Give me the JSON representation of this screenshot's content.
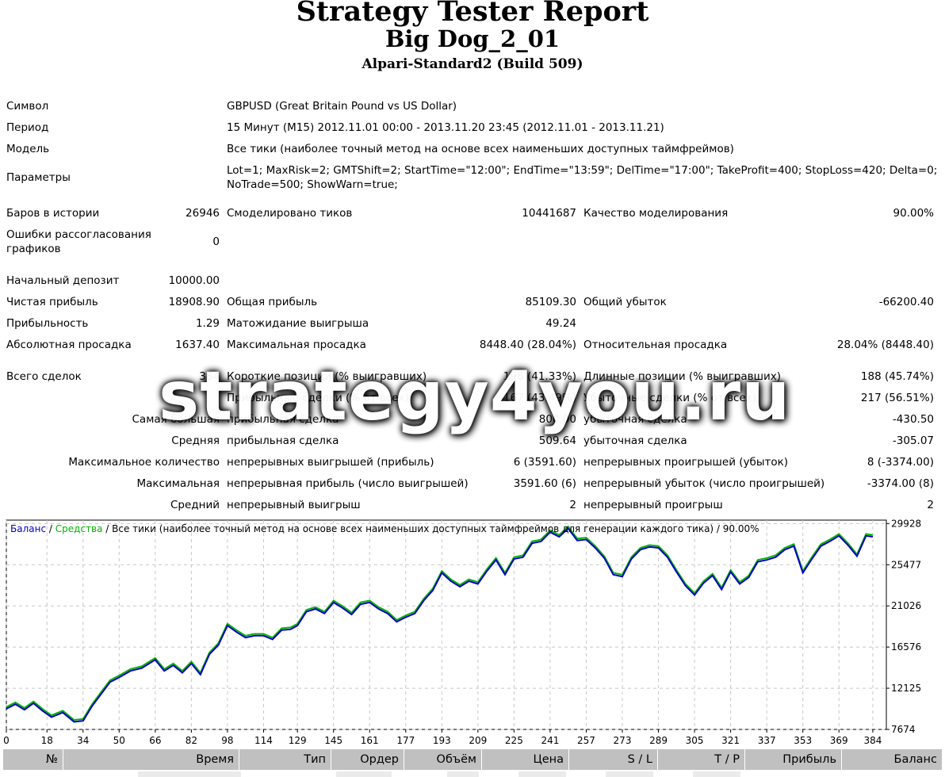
{
  "header": {
    "title": "Strategy Tester Report",
    "expert": "Big Dog_2_01",
    "broker": "Alpari-Standard2 (Build 509)"
  },
  "settings": {
    "symbol_label": "Символ",
    "symbol_value": "GBPUSD (Great Britain Pound vs US Dollar)",
    "period_label": "Период",
    "period_value": "15 Минут (M15) 2012.11.01 00:00 - 2013.11.20 23:45 (2012.11.01 - 2013.11.21)",
    "model_label": "Модель",
    "model_value": "Все тики (наиболее точный метод на основе всех наименьших доступных таймфреймов)",
    "params_label": "Параметры",
    "params_line1": "Lot=1; MaxRisk=2; GMTShift=2; StartTime=\"12:00\"; EndTime=\"13:59\"; DelTime=\"17:00\"; TakeProfit=400; StopLoss=420; Delta=0;",
    "params_line2": "NoTrade=500; ShowWarn=true;"
  },
  "stats": {
    "bars_label": "Баров в истории",
    "bars_value": "26946",
    "ticks_label": "Смоделировано тиков",
    "ticks_value": "10441687",
    "quality_label": "Качество моделирования",
    "quality_value": "90.00%",
    "mismatch_label_1": "Ошибки рассогласования",
    "mismatch_label_2": "графиков",
    "mismatch_value": "0",
    "deposit_label": "Начальный депозит",
    "deposit_value": "10000.00",
    "net_label": "Чистая прибыль",
    "net_value": "18908.90",
    "gross_profit_label": "Общая прибыль",
    "gross_profit_value": "85109.30",
    "gross_loss_label": "Общий убыток",
    "gross_loss_value": "-66200.40",
    "pf_label": "Прибыльность",
    "pf_value": "1.29",
    "expected_label": "Матожидание выигрыша",
    "expected_value": "49.24",
    "abs_dd_label": "Абсолютная просадка",
    "abs_dd_value": "1637.40",
    "max_dd_label": "Максимальная просадка",
    "max_dd_value": "8448.40 (28.04%)",
    "rel_dd_label": "Относительная просадка",
    "rel_dd_value": "28.04% (8448.40)",
    "total_label": "Всего сделок",
    "total_value": "384",
    "short_label": "Короткие позиции (% выигравших)",
    "short_value": "196 (41.33%)",
    "long_label": "Длинные позиции (% выигравших)",
    "long_value": "188 (45.74%)",
    "profit_trades_label": "Прибыльные сделки (% от всех)",
    "profit_trades_value": "167 (43.49%)",
    "loss_trades_label": "Убыточные сделки (% от всех)",
    "loss_trades_value": "217 (56.51%)",
    "largest_label": "Самая большая",
    "largest_profit_label": "прибыльная сделка",
    "largest_profit_value": "800.00",
    "largest_loss_label": "убыточная сделка",
    "largest_loss_value": "-430.50",
    "average_label": "Средняя",
    "average_profit_label": "прибыльная сделка",
    "average_profit_value": "509.64",
    "average_loss_label": "убыточная сделка",
    "average_loss_value": "-305.07",
    "max_count_label": "Максимальное количество",
    "max_cons_wins_label": "непрерывных выигрышей (прибыль)",
    "max_cons_wins_value": "6 (3591.60)",
    "max_cons_losses_label": "непрерывных проигрышей (убыток)",
    "max_cons_losses_value": "8 (-3374.00)",
    "maximal_label": "Максимальная",
    "maximal_profit_label": "непрерывная прибыль (число выигрышей)",
    "maximal_profit_value": "3591.60 (6)",
    "maximal_loss_label": "непрерывный убыток (число проигрышей)",
    "maximal_loss_value": "-3374.00 (8)",
    "avg_cons_label": "Средний",
    "avg_cons_wins_label": "непрерывный выигрыш",
    "avg_cons_wins_value": "2",
    "avg_cons_losses_label": "непрерывный проигрыш",
    "avg_cons_losses_value": "2"
  },
  "watermark": "strategy4you.ru",
  "chart_data": {
    "type": "line",
    "legend": {
      "balance": "Баланс",
      "sep1": " / ",
      "equity": "Средства",
      "rest": " / Все тики (наиболее точный метод на основе всех наименьших доступных таймфреймов для генерации каждого тика) / 90.00%"
    },
    "colors": {
      "balance": "#0000c8",
      "equity": "#00b400",
      "grid": "#c8c8c8"
    },
    "grid": true,
    "xlim": [
      0,
      390
    ],
    "ylim": [
      7674,
      30300
    ],
    "x_ticks": [
      0,
      18,
      34,
      50,
      66,
      82,
      98,
      114,
      129,
      145,
      161,
      177,
      193,
      209,
      225,
      241,
      257,
      273,
      289,
      305,
      321,
      337,
      353,
      369,
      384
    ],
    "y_ticks": [
      7674,
      12125,
      16576,
      21026,
      25477,
      29928
    ],
    "series": [
      {
        "name": "Баланс",
        "x": [
          0,
          4,
          8,
          12,
          16,
          20,
          25,
          30,
          34,
          38,
          42,
          46,
          50,
          55,
          60,
          66,
          70,
          74,
          78,
          82,
          86,
          90,
          94,
          98,
          102,
          106,
          110,
          114,
          118,
          122,
          126,
          129,
          133,
          137,
          141,
          145,
          149,
          153,
          157,
          161,
          165,
          169,
          173,
          177,
          181,
          185,
          189,
          193,
          197,
          201,
          205,
          209,
          213,
          217,
          221,
          225,
          229,
          233,
          237,
          241,
          245,
          249,
          253,
          257,
          261,
          265,
          269,
          273,
          277,
          281,
          285,
          289,
          293,
          297,
          301,
          305,
          309,
          313,
          317,
          321,
          325,
          329,
          333,
          337,
          341,
          345,
          349,
          353,
          357,
          361,
          365,
          369,
          373,
          377,
          381,
          384
        ],
        "y": [
          9900,
          10400,
          9800,
          10500,
          9700,
          9000,
          9500,
          8500,
          8600,
          10200,
          11500,
          12800,
          13300,
          14000,
          14300,
          15200,
          14000,
          14600,
          13800,
          14800,
          13600,
          15800,
          16800,
          18900,
          18200,
          17600,
          17800,
          17800,
          17400,
          18400,
          18500,
          18900,
          20400,
          20700,
          20200,
          21400,
          20800,
          20100,
          21200,
          21400,
          20700,
          20200,
          19300,
          19800,
          20200,
          21600,
          22700,
          24600,
          23700,
          23100,
          23700,
          23400,
          24800,
          26000,
          24400,
          26100,
          26300,
          27800,
          28000,
          29000,
          28500,
          29400,
          28100,
          28200,
          27300,
          26200,
          24400,
          24200,
          26100,
          27100,
          27400,
          27300,
          26300,
          24700,
          23200,
          22200,
          23500,
          24300,
          22800,
          24700,
          23400,
          24100,
          25800,
          26000,
          26300,
          27100,
          27500,
          24600,
          26100,
          27500,
          28000,
          28600,
          27600,
          26400,
          28600,
          28500
        ]
      },
      {
        "name": "Средства",
        "x": [
          0,
          4,
          8,
          12,
          16,
          20,
          25,
          30,
          34,
          38,
          42,
          46,
          50,
          55,
          60,
          66,
          70,
          74,
          78,
          82,
          86,
          90,
          94,
          98,
          102,
          106,
          110,
          114,
          118,
          122,
          126,
          129,
          133,
          137,
          141,
          145,
          149,
          153,
          157,
          161,
          165,
          169,
          173,
          177,
          181,
          185,
          189,
          193,
          197,
          201,
          205,
          209,
          213,
          217,
          221,
          225,
          229,
          233,
          237,
          241,
          245,
          249,
          253,
          257,
          261,
          265,
          269,
          273,
          277,
          281,
          285,
          289,
          293,
          297,
          301,
          305,
          309,
          313,
          317,
          321,
          325,
          329,
          333,
          337,
          341,
          345,
          349,
          353,
          357,
          361,
          365,
          369,
          373,
          377,
          381,
          384
        ],
        "y": [
          10100,
          10600,
          10000,
          10700,
          9900,
          9200,
          9700,
          8700,
          8800,
          10400,
          11700,
          13000,
          13500,
          14200,
          14500,
          15400,
          14200,
          14800,
          14000,
          15000,
          13800,
          16000,
          17000,
          19100,
          18400,
          17800,
          18000,
          18000,
          17600,
          18600,
          18700,
          19100,
          20600,
          20900,
          20400,
          21600,
          21000,
          20300,
          21400,
          21600,
          20900,
          20400,
          19500,
          20000,
          20400,
          21800,
          22900,
          24800,
          23900,
          23300,
          23900,
          23600,
          25000,
          26200,
          24600,
          26300,
          26500,
          28000,
          28200,
          29200,
          28700,
          29600,
          28300,
          28400,
          27500,
          26400,
          24600,
          24400,
          26300,
          27300,
          27600,
          27500,
          26500,
          24900,
          23400,
          22400,
          23700,
          24500,
          23000,
          24900,
          23600,
          24300,
          26000,
          26200,
          26500,
          27300,
          27700,
          24800,
          26300,
          27700,
          28200,
          28800,
          27800,
          26600,
          28800,
          28700
        ]
      }
    ]
  },
  "table": {
    "headers": [
      "№",
      "Время",
      "Тип",
      "Ордер",
      "Объём",
      "Цена",
      "S / L",
      "T / P",
      "Прибыль",
      "Баланс"
    ]
  }
}
